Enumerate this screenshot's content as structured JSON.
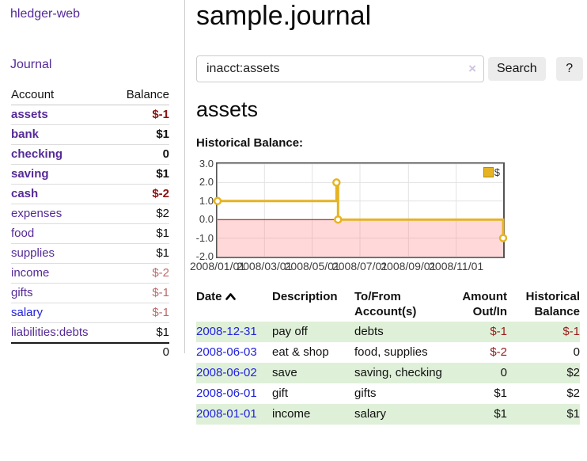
{
  "brand": "hledger-web",
  "nav": {
    "journal": "Journal"
  },
  "sidebar": {
    "headers": {
      "account": "Account",
      "balance": "Balance"
    },
    "accounts": [
      {
        "name": "assets",
        "balance": "$-1",
        "level": 1,
        "bold": true,
        "balance_style": "neg-strong",
        "link_style": "purple"
      },
      {
        "name": "bank",
        "balance": "$1",
        "level": 2,
        "bold": true,
        "balance_style": "",
        "link_style": "purple"
      },
      {
        "name": "checking",
        "balance": "0",
        "level": 3,
        "bold": true,
        "balance_style": "",
        "link_style": "purple"
      },
      {
        "name": "saving",
        "balance": "$1",
        "level": 3,
        "bold": true,
        "balance_style": "",
        "link_style": "purple"
      },
      {
        "name": "cash",
        "balance": "$-2",
        "level": 2,
        "bold": true,
        "balance_style": "neg-strong",
        "link_style": "purple"
      },
      {
        "name": "expenses",
        "balance": "$2",
        "level": 1,
        "bold": false,
        "balance_style": "",
        "link_style": "purple"
      },
      {
        "name": "food",
        "balance": "$1",
        "level": 2,
        "bold": false,
        "balance_style": "",
        "link_style": "purple"
      },
      {
        "name": "supplies",
        "balance": "$1",
        "level": 2,
        "bold": false,
        "balance_style": "",
        "link_style": "purple"
      },
      {
        "name": "income",
        "balance": "$-2",
        "level": 1,
        "bold": false,
        "balance_style": "neg-soft",
        "link_style": "purple"
      },
      {
        "name": "gifts",
        "balance": "$-1",
        "level": 2,
        "bold": false,
        "balance_style": "neg-soft",
        "link_style": "purple"
      },
      {
        "name": "salary",
        "balance": "$-1",
        "level": 2,
        "bold": false,
        "balance_style": "neg-soft",
        "link_style": "blue"
      },
      {
        "name": "liabilities:debts",
        "balance": "$1",
        "level": 1,
        "bold": false,
        "balance_style": "",
        "link_style": "purple"
      }
    ],
    "total": "0"
  },
  "main": {
    "title": "sample.journal",
    "search": {
      "value": "inacct:assets",
      "clear_glyph": "×",
      "button_label": "Search",
      "help_label": "?"
    },
    "account_heading": "assets",
    "chart_title": "Historical Balance:"
  },
  "chart_data": {
    "type": "line",
    "step": true,
    "title": "Historical Balance:",
    "series": [
      {
        "name": "$",
        "color": "#e6b422",
        "points": [
          [
            "2008-01-01",
            1
          ],
          [
            "2008-06-01",
            2
          ],
          [
            "2008-06-03",
            0
          ],
          [
            "2008-12-31",
            -1
          ]
        ]
      }
    ],
    "ylim": [
      -2,
      3
    ],
    "ytick_labels": [
      "3.0",
      "2.0",
      "1.0",
      "0.0",
      "-1.0",
      "-2.0"
    ],
    "xtick_labels": [
      "2008/01/01",
      "2008/03/01",
      "2008/05/01",
      "2008/07/01",
      "2008/09/01",
      "2008/11/01"
    ],
    "legend": {
      "position": "top-right",
      "label": "$"
    },
    "grid": true,
    "grid_color": "#e3e3e3",
    "negative_region_color": "#ff7878",
    "zero_line_color": "#a40000",
    "marker_fill": "#ffffff"
  },
  "register": {
    "headers": [
      "Date",
      "Description",
      "To/From Account(s)",
      "Amount Out/In",
      "Historical Balance"
    ],
    "rows": [
      {
        "date": "2008-12-31",
        "description": "pay off",
        "accounts": "debts",
        "amount": "$-1",
        "balance": "$-1"
      },
      {
        "date": "2008-06-03",
        "description": "eat & shop",
        "accounts": "food, supplies",
        "amount": "$-2",
        "balance": "0"
      },
      {
        "date": "2008-06-02",
        "description": "save",
        "accounts": "saving, checking",
        "amount": "0",
        "balance": "$2"
      },
      {
        "date": "2008-06-01",
        "description": "gift",
        "accounts": "gifts",
        "amount": "$1",
        "balance": "$2"
      },
      {
        "date": "2008-01-01",
        "description": "income",
        "accounts": "salary",
        "amount": "$1",
        "balance": "$1"
      }
    ]
  }
}
